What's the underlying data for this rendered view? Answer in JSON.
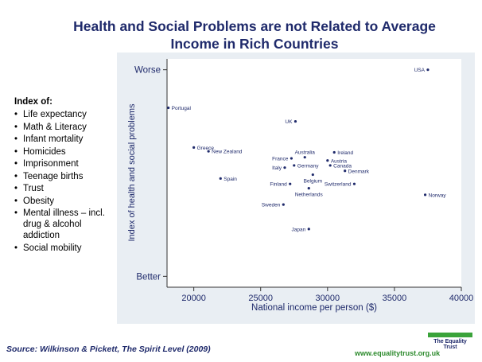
{
  "header": {
    "title_line1": "Health and Social Problems are not Related to Average",
    "title_line2": "Income in Rich Countries"
  },
  "index_block": {
    "heading": "Index of:",
    "items": [
      "Life expectancy",
      "Math & Literacy",
      "Infant mortality",
      "Homicides",
      "Imprisonment",
      "Teenage births",
      "Trust",
      "Obesity",
      "Mental illness – incl. drug & alcohol addiction",
      "Social mobility"
    ]
  },
  "footer": {
    "source": "Source: Wilkinson & Pickett, The Spirit Level (2009)",
    "site": "www.equalitytrust.org.uk",
    "logo": "The Equality Trust"
  },
  "colors": {
    "title": "#1f2a6b",
    "plot_background": "#e9eef3",
    "point": "#1f2a6b",
    "logo_green": "#3aa33a"
  },
  "chart_data": {
    "type": "scatter",
    "xlabel": "National income per person ($)",
    "ylabel": "Index of health and social problems",
    "xlim": [
      18000,
      40000
    ],
    "ylim": [
      -2.1,
      2.1
    ],
    "x_ticks": [
      20000,
      25000,
      30000,
      35000,
      40000
    ],
    "y_tick_labels": [
      {
        "value": 1.9,
        "label": "Worse"
      },
      {
        "value": -1.9,
        "label": "Better"
      }
    ],
    "grid": false,
    "points": [
      {
        "label": "USA",
        "x": 37500,
        "y": 1.9
      },
      {
        "label": "Portugal",
        "x": 18100,
        "y": 1.2
      },
      {
        "label": "UK",
        "x": 27600,
        "y": 0.95
      },
      {
        "label": "Greece",
        "x": 20000,
        "y": 0.47
      },
      {
        "label": "New Zealand",
        "x": 21100,
        "y": 0.4
      },
      {
        "label": "Ireland",
        "x": 30500,
        "y": 0.38
      },
      {
        "label": "France",
        "x": 27300,
        "y": 0.27
      },
      {
        "label": "Australia",
        "x": 28300,
        "y": 0.29
      },
      {
        "label": "Austria",
        "x": 30000,
        "y": 0.23
      },
      {
        "label": "Italy",
        "x": 26800,
        "y": 0.1
      },
      {
        "label": "Germany",
        "x": 27500,
        "y": 0.14
      },
      {
        "label": "Canada",
        "x": 30200,
        "y": 0.14
      },
      {
        "label": "Denmark",
        "x": 31300,
        "y": 0.04
      },
      {
        "label": "Belgium",
        "x": 28900,
        "y": -0.03
      },
      {
        "label": "Spain",
        "x": 22000,
        "y": -0.1
      },
      {
        "label": "Finland",
        "x": 27200,
        "y": -0.2
      },
      {
        "label": "Switzerland",
        "x": 32000,
        "y": -0.2
      },
      {
        "label": "Netherlands",
        "x": 28600,
        "y": -0.28
      },
      {
        "label": "Norway",
        "x": 37300,
        "y": -0.4
      },
      {
        "label": "Sweden",
        "x": 26700,
        "y": -0.58
      },
      {
        "label": "Japan",
        "x": 28600,
        "y": -1.03
      }
    ]
  }
}
